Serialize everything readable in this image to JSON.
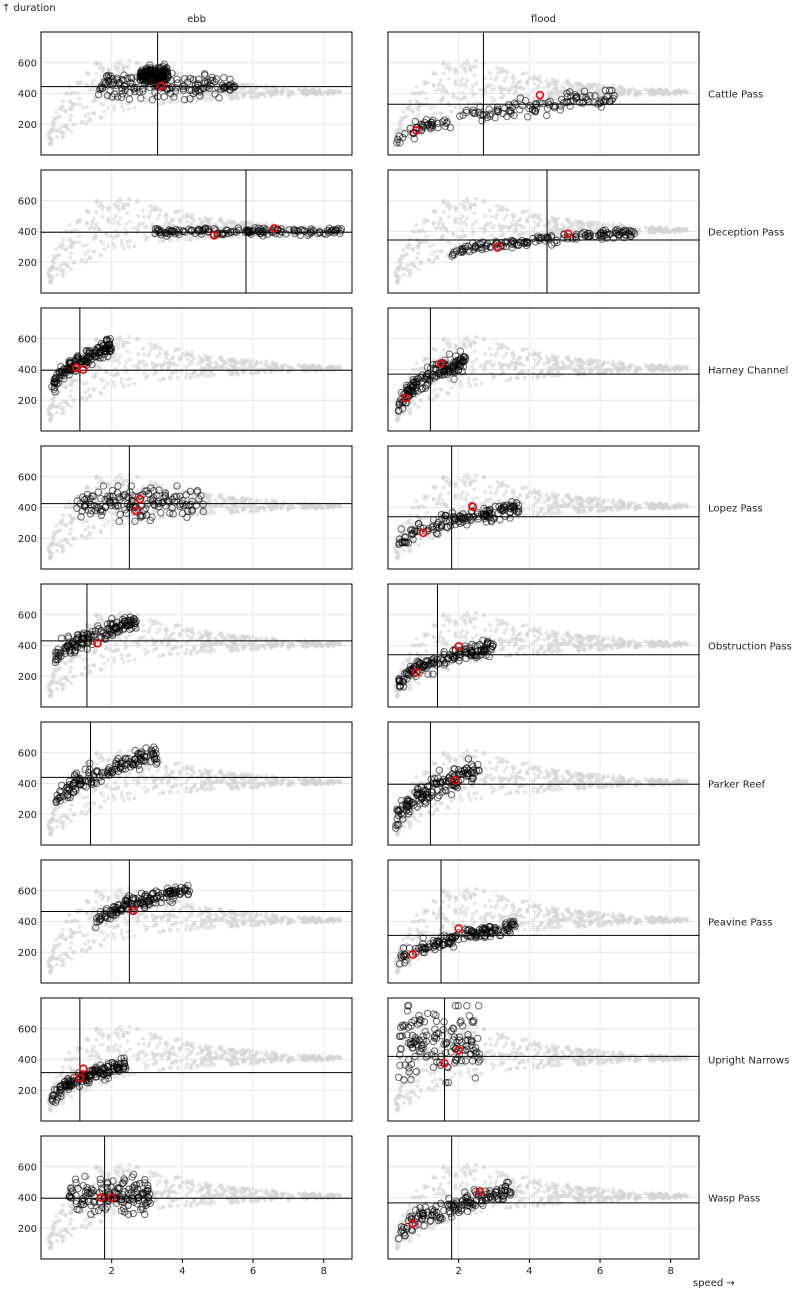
{
  "chart_data": {
    "type": "scatter",
    "faceted": true,
    "xlabel": "speed →",
    "ylabel": "↑ duration",
    "xlim": [
      0,
      8.8
    ],
    "ylim": [
      0,
      800
    ],
    "x_ticks": [
      2,
      4,
      6,
      8
    ],
    "y_ticks": [
      200,
      400,
      600
    ],
    "grid": true,
    "columns": [
      "ebb",
      "flood"
    ],
    "background_cloud": {
      "description_label": "",
      "color": "#d3d3d3",
      "x_range": [
        0.2,
        8.5
      ],
      "y_upper_curve": [
        [
          0.3,
          220
        ],
        [
          0.7,
          420
        ],
        [
          1.2,
          560
        ],
        [
          1.8,
          640
        ],
        [
          2.5,
          620
        ],
        [
          3.5,
          560
        ],
        [
          4.5,
          500
        ],
        [
          5.5,
          470
        ],
        [
          6.5,
          450
        ],
        [
          7.5,
          430
        ],
        [
          8.5,
          420
        ]
      ],
      "y_lower_curve": [
        [
          0.3,
          60
        ],
        [
          0.7,
          120
        ],
        [
          1.2,
          190
        ],
        [
          1.8,
          250
        ],
        [
          2.5,
          300
        ],
        [
          3.5,
          330
        ],
        [
          4.5,
          350
        ],
        [
          5.5,
          365
        ],
        [
          6.5,
          380
        ],
        [
          7.5,
          390
        ],
        [
          8.5,
          395
        ]
      ]
    },
    "facets": [
      {
        "row": "Cattle Pass",
        "ebb": {
          "median_x": 3.3,
          "median_y": 445,
          "red": [
            [
              3.4,
              450
            ]
          ],
          "cluster": [
            {
              "x": [
                1.6,
                5.5
              ],
              "y": [
                360,
                540
              ]
            },
            {
              "x": [
                2.8,
                3.6
              ],
              "y": [
                440,
                590
              ]
            }
          ]
        },
        "flood": {
          "median_x": 2.7,
          "median_y": 330,
          "red": [
            [
              0.8,
              160
            ],
            [
              4.3,
              390
            ]
          ],
          "cluster": [
            {
              "x": [
                0.25,
                6.4
              ],
              "y": [
                80,
                420
              ],
              "rising": true
            }
          ]
        }
      },
      {
        "row": "Deception Pass",
        "ebb": {
          "median_x": 5.8,
          "median_y": 395,
          "red": [
            [
              4.9,
              375
            ],
            [
              6.6,
              420
            ]
          ],
          "cluster": [
            {
              "x": [
                3.2,
                8.5
              ],
              "y": [
                370,
                430
              ]
            }
          ]
        },
        "flood": {
          "median_x": 4.5,
          "median_y": 345,
          "red": [
            [
              3.1,
              300
            ],
            [
              5.1,
              385
            ]
          ],
          "cluster": [
            {
              "x": [
                1.8,
                7.0
              ],
              "y": [
                240,
                420
              ],
              "rising": true
            }
          ]
        }
      },
      {
        "row": "Harney Channel",
        "ebb": {
          "median_x": 1.1,
          "median_y": 395,
          "red": [
            [
              1.0,
              410
            ],
            [
              1.2,
              400
            ]
          ],
          "cluster": [
            {
              "x": [
                0.3,
                2.0
              ],
              "y": [
                250,
                600
              ],
              "rising": true
            }
          ]
        },
        "flood": {
          "median_x": 1.2,
          "median_y": 370,
          "red": [
            [
              0.5,
              215
            ],
            [
              1.5,
              440
            ]
          ],
          "cluster": [
            {
              "x": [
                0.3,
                2.2
              ],
              "y": [
                130,
                520
              ],
              "rising": true
            }
          ]
        }
      },
      {
        "row": "Lopez Pass",
        "ebb": {
          "median_x": 2.5,
          "median_y": 425,
          "red": [
            [
              2.7,
              380
            ],
            [
              2.8,
              455
            ]
          ],
          "cluster": [
            {
              "x": [
                1.0,
                4.6
              ],
              "y": [
                310,
                540
              ]
            }
          ]
        },
        "flood": {
          "median_x": 1.8,
          "median_y": 340,
          "red": [
            [
              1.0,
              235
            ],
            [
              2.4,
              405
            ]
          ],
          "cluster": [
            {
              "x": [
                0.3,
                3.7
              ],
              "y": [
                140,
                450
              ],
              "rising": true
            }
          ]
        }
      },
      {
        "row": "Obstruction Pass",
        "ebb": {
          "median_x": 1.3,
          "median_y": 430,
          "red": [
            [
              1.6,
              415
            ]
          ],
          "cluster": [
            {
              "x": [
                0.4,
                2.7
              ],
              "y": [
                290,
                600
              ],
              "rising": true
            }
          ]
        },
        "flood": {
          "median_x": 1.4,
          "median_y": 340,
          "red": [
            [
              0.8,
              225
            ],
            [
              2.0,
              395
            ]
          ],
          "cluster": [
            {
              "x": [
                0.3,
                3.0
              ],
              "y": [
                130,
                440
              ],
              "rising": true
            }
          ]
        }
      },
      {
        "row": "Parker Reef",
        "ebb": {
          "median_x": 1.4,
          "median_y": 440,
          "red": [],
          "cluster": [
            {
              "x": [
                0.4,
                3.3
              ],
              "y": [
                250,
                640
              ],
              "rising": true
            }
          ]
        },
        "flood": {
          "median_x": 1.2,
          "median_y": 395,
          "red": [
            [
              1.9,
              420
            ]
          ],
          "cluster": [
            {
              "x": [
                0.2,
                2.6
              ],
              "y": [
                110,
                560
              ],
              "rising": true
            }
          ]
        }
      },
      {
        "row": "Peavine Pass",
        "ebb": {
          "median_x": 2.5,
          "median_y": 465,
          "red": [
            [
              2.6,
              470
            ]
          ],
          "cluster": [
            {
              "x": [
                1.5,
                4.2
              ],
              "y": [
                360,
                650
              ],
              "rising": true
            }
          ]
        },
        "flood": {
          "median_x": 1.5,
          "median_y": 310,
          "red": [
            [
              0.7,
              185
            ],
            [
              2.0,
              355
            ]
          ],
          "cluster": [
            {
              "x": [
                0.3,
                3.6
              ],
              "y": [
                120,
                410
              ],
              "rising": true
            }
          ]
        }
      },
      {
        "row": "Upright Narrows",
        "ebb": {
          "median_x": 1.1,
          "median_y": 315,
          "red": [
            [
              1.1,
              280
            ],
            [
              1.2,
              340
            ]
          ],
          "cluster": [
            {
              "x": [
                0.3,
                2.4
              ],
              "y": [
                120,
                410
              ],
              "rising": true
            }
          ]
        },
        "flood": {
          "median_x": 1.6,
          "median_y": 420,
          "red": [
            [
              1.6,
              375
            ],
            [
              2.0,
              460
            ]
          ],
          "cluster": [
            {
              "x": [
                0.3,
                2.6
              ],
              "y": [
                250,
                750
              ]
            }
          ]
        }
      },
      {
        "row": "Wasp Pass",
        "ebb": {
          "median_x": 1.8,
          "median_y": 395,
          "red": [
            [
              1.7,
              400
            ],
            [
              2.0,
              400
            ]
          ],
          "cluster": [
            {
              "x": [
                0.8,
                3.1
              ],
              "y": [
                290,
                550
              ]
            }
          ]
        },
        "flood": {
          "median_x": 1.8,
          "median_y": 365,
          "red": [
            [
              0.7,
              230
            ],
            [
              2.6,
              440
            ]
          ],
          "cluster": [
            {
              "x": [
                0.3,
                3.5
              ],
              "y": [
                120,
                500
              ],
              "rising": true
            }
          ]
        }
      }
    ]
  }
}
